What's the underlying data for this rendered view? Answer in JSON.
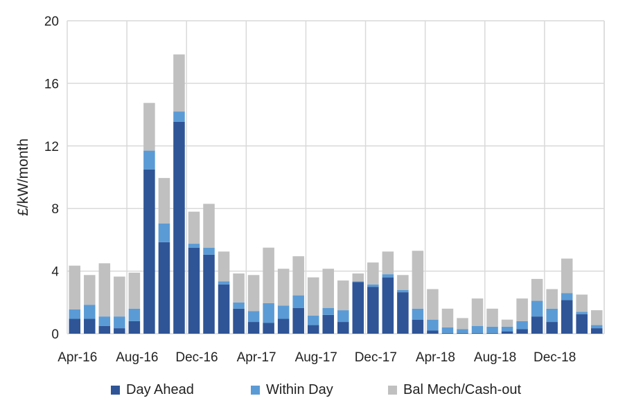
{
  "chart_data": {
    "type": "bar",
    "stacked": true,
    "title": "",
    "xlabel": "",
    "ylabel": "£/kW/month",
    "ylim": [
      0,
      20
    ],
    "yticks": [
      0,
      4,
      8,
      12,
      16,
      20
    ],
    "grid": true,
    "legend_position": "bottom",
    "categories": [
      "Apr-16",
      "May-16",
      "Jun-16",
      "Jul-16",
      "Aug-16",
      "Sep-16",
      "Oct-16",
      "Nov-16",
      "Dec-16",
      "Jan-17",
      "Feb-17",
      "Mar-17",
      "Apr-17",
      "May-17",
      "Jun-17",
      "Jul-17",
      "Aug-17",
      "Sep-17",
      "Oct-17",
      "Nov-17",
      "Dec-17",
      "Jan-18",
      "Feb-18",
      "Mar-18",
      "Apr-18",
      "May-18",
      "Jun-18",
      "Jul-18",
      "Aug-18",
      "Sep-18",
      "Oct-18",
      "Nov-18",
      "Dec-18",
      "Jan-19",
      "Feb-19",
      "Mar-19"
    ],
    "xtick_labels": [
      "Apr-16",
      "Aug-16",
      "Dec-16",
      "Apr-17",
      "Aug-17",
      "Dec-17",
      "Apr-18",
      "Aug-18",
      "Dec-18"
    ],
    "series": [
      {
        "name": "Day Ahead",
        "color": "#2f5597",
        "values": [
          0.95,
          0.95,
          0.5,
          0.35,
          0.8,
          10.5,
          5.85,
          13.55,
          5.5,
          5.05,
          3.15,
          1.6,
          0.75,
          0.7,
          0.95,
          1.65,
          0.55,
          1.2,
          0.75,
          3.3,
          3.0,
          3.6,
          2.65,
          0.9,
          0.2,
          0.05,
          0.05,
          0.05,
          0.05,
          0.15,
          0.3,
          1.1,
          0.75,
          2.15,
          1.25,
          0.35
        ]
      },
      {
        "name": "Within Day",
        "color": "#5b9bd5",
        "values": [
          0.6,
          0.9,
          0.6,
          0.75,
          0.8,
          1.2,
          1.2,
          0.65,
          0.25,
          0.45,
          0.2,
          0.4,
          0.7,
          1.25,
          0.85,
          0.8,
          0.6,
          0.45,
          0.75,
          0.05,
          0.15,
          0.2,
          0.15,
          0.7,
          0.7,
          0.35,
          0.25,
          0.45,
          0.4,
          0.3,
          0.5,
          1.0,
          0.85,
          0.45,
          0.15,
          0.2
        ]
      },
      {
        "name": "Bal Mech/Cash-out",
        "color": "#c0c0c0",
        "values": [
          2.8,
          1.9,
          3.4,
          2.55,
          2.3,
          3.05,
          2.9,
          3.65,
          2.05,
          2.8,
          1.9,
          1.85,
          2.3,
          3.55,
          2.35,
          2.5,
          2.45,
          2.5,
          1.9,
          0.5,
          1.4,
          1.45,
          0.95,
          3.7,
          1.95,
          1.2,
          0.7,
          1.75,
          1.15,
          0.45,
          1.45,
          1.4,
          1.25,
          2.2,
          1.1,
          0.95
        ]
      }
    ]
  }
}
